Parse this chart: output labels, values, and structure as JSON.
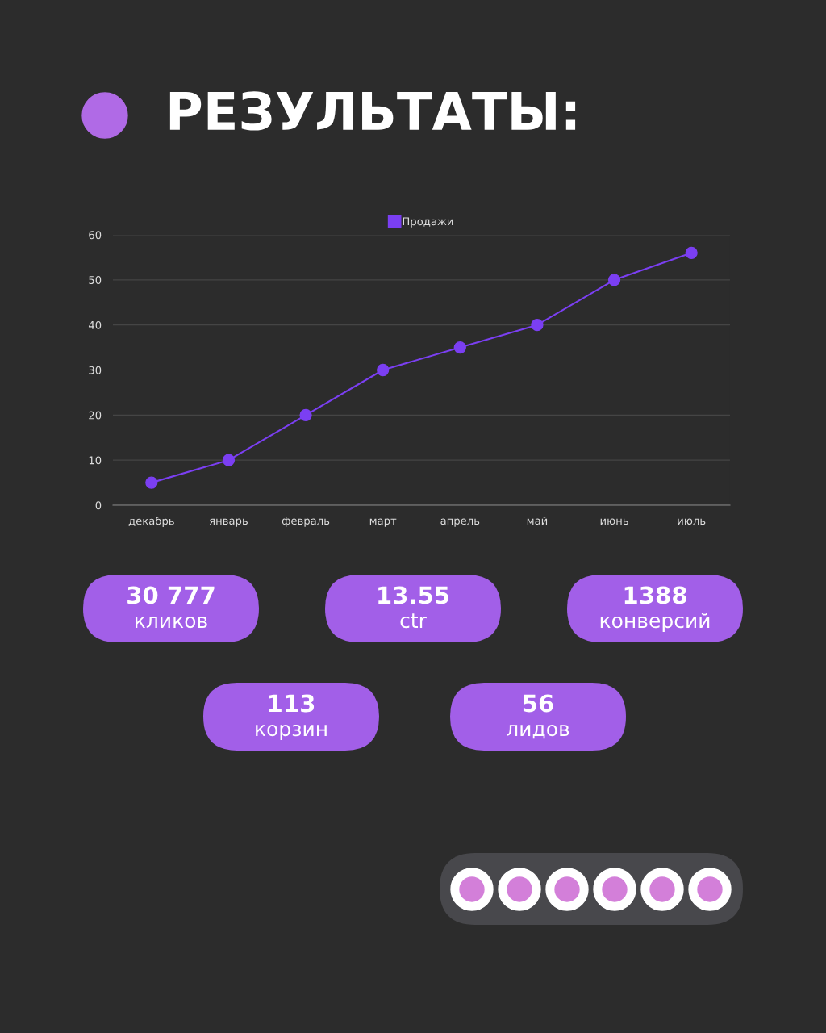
{
  "chart_data": [
    {
      "type": "line",
      "title": "РЕЗУЛЬТАТЫ:",
      "categories": [
        "декабрь",
        "январь",
        "февраль",
        "март",
        "апрель",
        "май",
        "июнь",
        "июль"
      ],
      "series": [
        {
          "name": "Продажи",
          "color": "#7b3ff2",
          "values": [
            5,
            10,
            20,
            30,
            35,
            40,
            50,
            56
          ]
        }
      ],
      "ylim": [
        0,
        60
      ],
      "yticks": [
        0,
        10,
        20,
        30,
        40,
        50,
        60
      ],
      "grid": "y",
      "legend": "top",
      "marker": "circle",
      "line_style": "solid"
    },
    {
      "type": "other",
      "annotations": [
        "30 777",
        "кликов",
        "13.55",
        "ctr",
        "1388",
        "конверсий",
        "113",
        "корзин",
        "56",
        "лидов"
      ]
    }
  ]
}
